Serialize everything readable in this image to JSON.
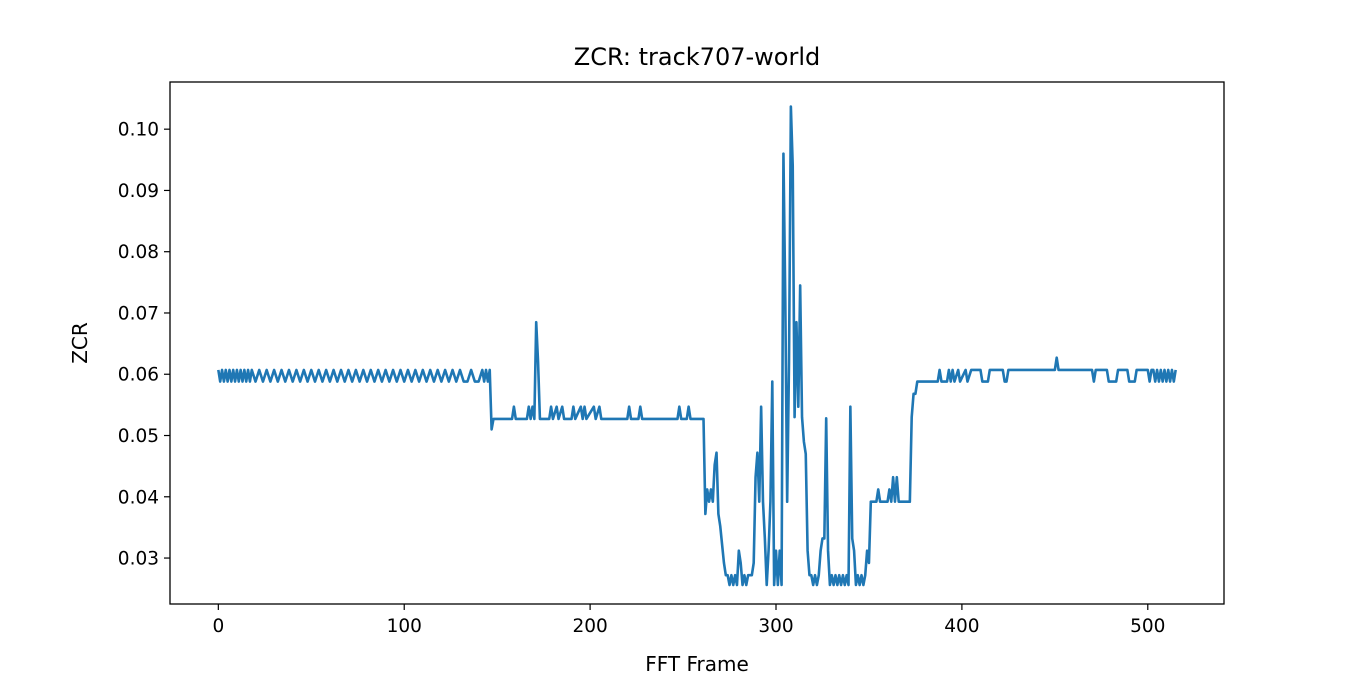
{
  "chart_data": {
    "type": "line",
    "title": "ZCR: track707-world",
    "xlabel": "FFT Frame",
    "ylabel": "ZCR",
    "xlim": [
      -26,
      541
    ],
    "ylim": [
      0.0225,
      0.1077
    ],
    "xticks": [
      0,
      100,
      200,
      300,
      400,
      500
    ],
    "yticks": [
      0.03,
      0.04,
      0.05,
      0.06,
      0.07,
      0.08,
      0.09,
      0.1
    ],
    "xtick_labels": [
      "0",
      "100",
      "200",
      "300",
      "400",
      "500"
    ],
    "ytick_labels": [
      "0.03",
      "0.04",
      "0.05",
      "0.06",
      "0.07",
      "0.08",
      "0.09",
      "0.10"
    ],
    "grid": false,
    "series": [
      {
        "color": "#1f77b4",
        "points": [
          [
            0,
            0.0607
          ],
          [
            1,
            0.0588
          ],
          [
            2,
            0.0607
          ],
          [
            3,
            0.0588
          ],
          [
            4,
            0.0607
          ],
          [
            5,
            0.0588
          ],
          [
            6,
            0.0607
          ],
          [
            7,
            0.0588
          ],
          [
            8,
            0.0607
          ],
          [
            9,
            0.0588
          ],
          [
            10,
            0.0607
          ],
          [
            11,
            0.0588
          ],
          [
            12,
            0.0607
          ],
          [
            13,
            0.0588
          ],
          [
            14,
            0.0607
          ],
          [
            15,
            0.0588
          ],
          [
            16,
            0.0607
          ],
          [
            17,
            0.0588
          ],
          [
            18,
            0.0607
          ],
          [
            20,
            0.0588
          ],
          [
            22,
            0.0607
          ],
          [
            24,
            0.0588
          ],
          [
            26,
            0.0607
          ],
          [
            28,
            0.0588
          ],
          [
            30,
            0.0607
          ],
          [
            32,
            0.0588
          ],
          [
            34,
            0.0607
          ],
          [
            36,
            0.0588
          ],
          [
            38,
            0.0607
          ],
          [
            40,
            0.0588
          ],
          [
            42,
            0.0607
          ],
          [
            44,
            0.0588
          ],
          [
            46,
            0.0607
          ],
          [
            48,
            0.0588
          ],
          [
            50,
            0.0607
          ],
          [
            52,
            0.0588
          ],
          [
            54,
            0.0607
          ],
          [
            56,
            0.0588
          ],
          [
            58,
            0.0607
          ],
          [
            60,
            0.0588
          ],
          [
            62,
            0.0607
          ],
          [
            64,
            0.0588
          ],
          [
            66,
            0.0607
          ],
          [
            68,
            0.0588
          ],
          [
            70,
            0.0607
          ],
          [
            72,
            0.0588
          ],
          [
            74,
            0.0607
          ],
          [
            76,
            0.0588
          ],
          [
            78,
            0.0607
          ],
          [
            80,
            0.0588
          ],
          [
            82,
            0.0607
          ],
          [
            84,
            0.0588
          ],
          [
            86,
            0.0607
          ],
          [
            88,
            0.0588
          ],
          [
            90,
            0.0607
          ],
          [
            92,
            0.0588
          ],
          [
            94,
            0.0607
          ],
          [
            96,
            0.0588
          ],
          [
            98,
            0.0607
          ],
          [
            100,
            0.0588
          ],
          [
            102,
            0.0607
          ],
          [
            104,
            0.0588
          ],
          [
            106,
            0.0607
          ],
          [
            108,
            0.0588
          ],
          [
            110,
            0.0607
          ],
          [
            112,
            0.0588
          ],
          [
            114,
            0.0607
          ],
          [
            116,
            0.0588
          ],
          [
            118,
            0.0607
          ],
          [
            120,
            0.0588
          ],
          [
            122,
            0.0607
          ],
          [
            124,
            0.0588
          ],
          [
            126,
            0.0607
          ],
          [
            128,
            0.0588
          ],
          [
            130,
            0.0607
          ],
          [
            132,
            0.0588
          ],
          [
            134,
            0.0588
          ],
          [
            136,
            0.0607
          ],
          [
            138,
            0.0588
          ],
          [
            140,
            0.0588
          ],
          [
            142,
            0.0607
          ],
          [
            143,
            0.0588
          ],
          [
            144,
            0.0607
          ],
          [
            145,
            0.0588
          ],
          [
            146,
            0.0607
          ],
          [
            147,
            0.051
          ],
          [
            148,
            0.0527
          ],
          [
            155,
            0.0527
          ],
          [
            158,
            0.0527
          ],
          [
            159,
            0.0547
          ],
          [
            160,
            0.0527
          ],
          [
            166,
            0.0527
          ],
          [
            167,
            0.0547
          ],
          [
            168,
            0.0527
          ],
          [
            169,
            0.0547
          ],
          [
            170,
            0.0527
          ],
          [
            171,
            0.0685
          ],
          [
            172,
            0.062
          ],
          [
            173,
            0.0527
          ],
          [
            178,
            0.0527
          ],
          [
            179,
            0.0547
          ],
          [
            180,
            0.0527
          ],
          [
            182,
            0.0547
          ],
          [
            183,
            0.0527
          ],
          [
            185,
            0.0547
          ],
          [
            186,
            0.0527
          ],
          [
            190,
            0.0527
          ],
          [
            191,
            0.0547
          ],
          [
            192,
            0.0527
          ],
          [
            195,
            0.0547
          ],
          [
            196,
            0.0527
          ],
          [
            197,
            0.0547
          ],
          [
            198,
            0.0527
          ],
          [
            202,
            0.0547
          ],
          [
            203,
            0.0527
          ],
          [
            205,
            0.0547
          ],
          [
            206,
            0.0527
          ],
          [
            220,
            0.0527
          ],
          [
            221,
            0.0547
          ],
          [
            222,
            0.0527
          ],
          [
            226,
            0.0527
          ],
          [
            227,
            0.0547
          ],
          [
            228,
            0.0527
          ],
          [
            247,
            0.0527
          ],
          [
            248,
            0.0547
          ],
          [
            249,
            0.0527
          ],
          [
            252,
            0.0527
          ],
          [
            253,
            0.0547
          ],
          [
            254,
            0.0527
          ],
          [
            261,
            0.0527
          ],
          [
            262,
            0.0372
          ],
          [
            263,
            0.0412
          ],
          [
            264,
            0.0392
          ],
          [
            265,
            0.0412
          ],
          [
            266,
            0.0392
          ],
          [
            267,
            0.0452
          ],
          [
            268,
            0.0472
          ],
          [
            269,
            0.0372
          ],
          [
            270,
            0.0352
          ],
          [
            272,
            0.0292
          ],
          [
            273,
            0.0272
          ],
          [
            274,
            0.0272
          ],
          [
            275,
            0.0256
          ],
          [
            276,
            0.0272
          ],
          [
            277,
            0.0256
          ],
          [
            278,
            0.0272
          ],
          [
            279,
            0.0256
          ],
          [
            280,
            0.0312
          ],
          [
            281,
            0.0292
          ],
          [
            282,
            0.0256
          ],
          [
            283,
            0.0272
          ],
          [
            284,
            0.0256
          ],
          [
            285,
            0.0272
          ],
          [
            287,
            0.0272
          ],
          [
            288,
            0.0292
          ],
          [
            289,
            0.0432
          ],
          [
            290,
            0.0472
          ],
          [
            291,
            0.0392
          ],
          [
            292,
            0.0547
          ],
          [
            293,
            0.0392
          ],
          [
            294,
            0.0332
          ],
          [
            295,
            0.0256
          ],
          [
            296,
            0.0312
          ],
          [
            297,
            0.0392
          ],
          [
            298,
            0.0588
          ],
          [
            299,
            0.0256
          ],
          [
            300,
            0.0312
          ],
          [
            301,
            0.0256
          ],
          [
            302,
            0.0312
          ],
          [
            303,
            0.0256
          ],
          [
            304,
            0.096
          ],
          [
            305,
            0.072
          ],
          [
            306,
            0.0392
          ],
          [
            307,
            0.062
          ],
          [
            308,
            0.1037
          ],
          [
            309,
            0.094
          ],
          [
            310,
            0.053
          ],
          [
            311,
            0.0685
          ],
          [
            312,
            0.0547
          ],
          [
            313,
            0.0745
          ],
          [
            314,
            0.053
          ],
          [
            315,
            0.049
          ],
          [
            316,
            0.047
          ],
          [
            317,
            0.0312
          ],
          [
            318,
            0.0272
          ],
          [
            319,
            0.0272
          ],
          [
            320,
            0.0256
          ],
          [
            321,
            0.0272
          ],
          [
            322,
            0.0256
          ],
          [
            323,
            0.0272
          ],
          [
            324,
            0.0312
          ],
          [
            325,
            0.0332
          ],
          [
            326,
            0.0332
          ],
          [
            327,
            0.0528
          ],
          [
            328,
            0.0312
          ],
          [
            329,
            0.0256
          ],
          [
            330,
            0.0272
          ],
          [
            331,
            0.0256
          ],
          [
            332,
            0.0272
          ],
          [
            333,
            0.0256
          ],
          [
            334,
            0.0272
          ],
          [
            335,
            0.0256
          ],
          [
            336,
            0.0272
          ],
          [
            337,
            0.0256
          ],
          [
            338,
            0.0272
          ],
          [
            339,
            0.0256
          ],
          [
            340,
            0.0547
          ],
          [
            341,
            0.0332
          ],
          [
            342,
            0.0312
          ],
          [
            343,
            0.0256
          ],
          [
            344,
            0.0272
          ],
          [
            345,
            0.0256
          ],
          [
            346,
            0.0272
          ],
          [
            347,
            0.0256
          ],
          [
            348,
            0.0272
          ],
          [
            349,
            0.0312
          ],
          [
            350,
            0.0292
          ],
          [
            351,
            0.0392
          ],
          [
            352,
            0.0392
          ],
          [
            354,
            0.0392
          ],
          [
            355,
            0.0412
          ],
          [
            356,
            0.0392
          ],
          [
            359,
            0.0392
          ],
          [
            360,
            0.0392
          ],
          [
            361,
            0.0412
          ],
          [
            362,
            0.0392
          ],
          [
            363,
            0.0432
          ],
          [
            364,
            0.0392
          ],
          [
            365,
            0.0432
          ],
          [
            366,
            0.0392
          ],
          [
            372,
            0.0392
          ],
          [
            373,
            0.053
          ],
          [
            374,
            0.0568
          ],
          [
            375,
            0.0568
          ],
          [
            376,
            0.0588
          ],
          [
            387,
            0.0588
          ],
          [
            388,
            0.0607
          ],
          [
            389,
            0.0588
          ],
          [
            392,
            0.0588
          ],
          [
            393,
            0.0607
          ],
          [
            394,
            0.0588
          ],
          [
            395,
            0.0607
          ],
          [
            396,
            0.0588
          ],
          [
            398,
            0.0607
          ],
          [
            399,
            0.0588
          ],
          [
            402,
            0.0607
          ],
          [
            403,
            0.0588
          ],
          [
            405,
            0.0607
          ],
          [
            406,
            0.0607
          ],
          [
            410,
            0.0607
          ],
          [
            411,
            0.0588
          ],
          [
            414,
            0.0588
          ],
          [
            415,
            0.0607
          ],
          [
            422,
            0.0607
          ],
          [
            423,
            0.0588
          ],
          [
            424,
            0.0588
          ],
          [
            425,
            0.0607
          ],
          [
            450,
            0.0607
          ],
          [
            451,
            0.0627
          ],
          [
            452,
            0.0607
          ],
          [
            470,
            0.0607
          ],
          [
            471,
            0.0588
          ],
          [
            472,
            0.0607
          ],
          [
            478,
            0.0607
          ],
          [
            479,
            0.0588
          ],
          [
            483,
            0.0588
          ],
          [
            484,
            0.0607
          ],
          [
            489,
            0.0607
          ],
          [
            490,
            0.0588
          ],
          [
            493,
            0.0588
          ],
          [
            494,
            0.0607
          ],
          [
            500,
            0.0607
          ],
          [
            501,
            0.0588
          ],
          [
            502,
            0.0607
          ],
          [
            503,
            0.0607
          ],
          [
            504,
            0.0588
          ],
          [
            505,
            0.0607
          ],
          [
            506,
            0.0588
          ],
          [
            507,
            0.0607
          ],
          [
            508,
            0.0588
          ],
          [
            509,
            0.0607
          ],
          [
            510,
            0.0588
          ],
          [
            511,
            0.0607
          ],
          [
            512,
            0.0588
          ],
          [
            513,
            0.0607
          ],
          [
            514,
            0.0588
          ],
          [
            515,
            0.0607
          ]
        ]
      }
    ]
  }
}
